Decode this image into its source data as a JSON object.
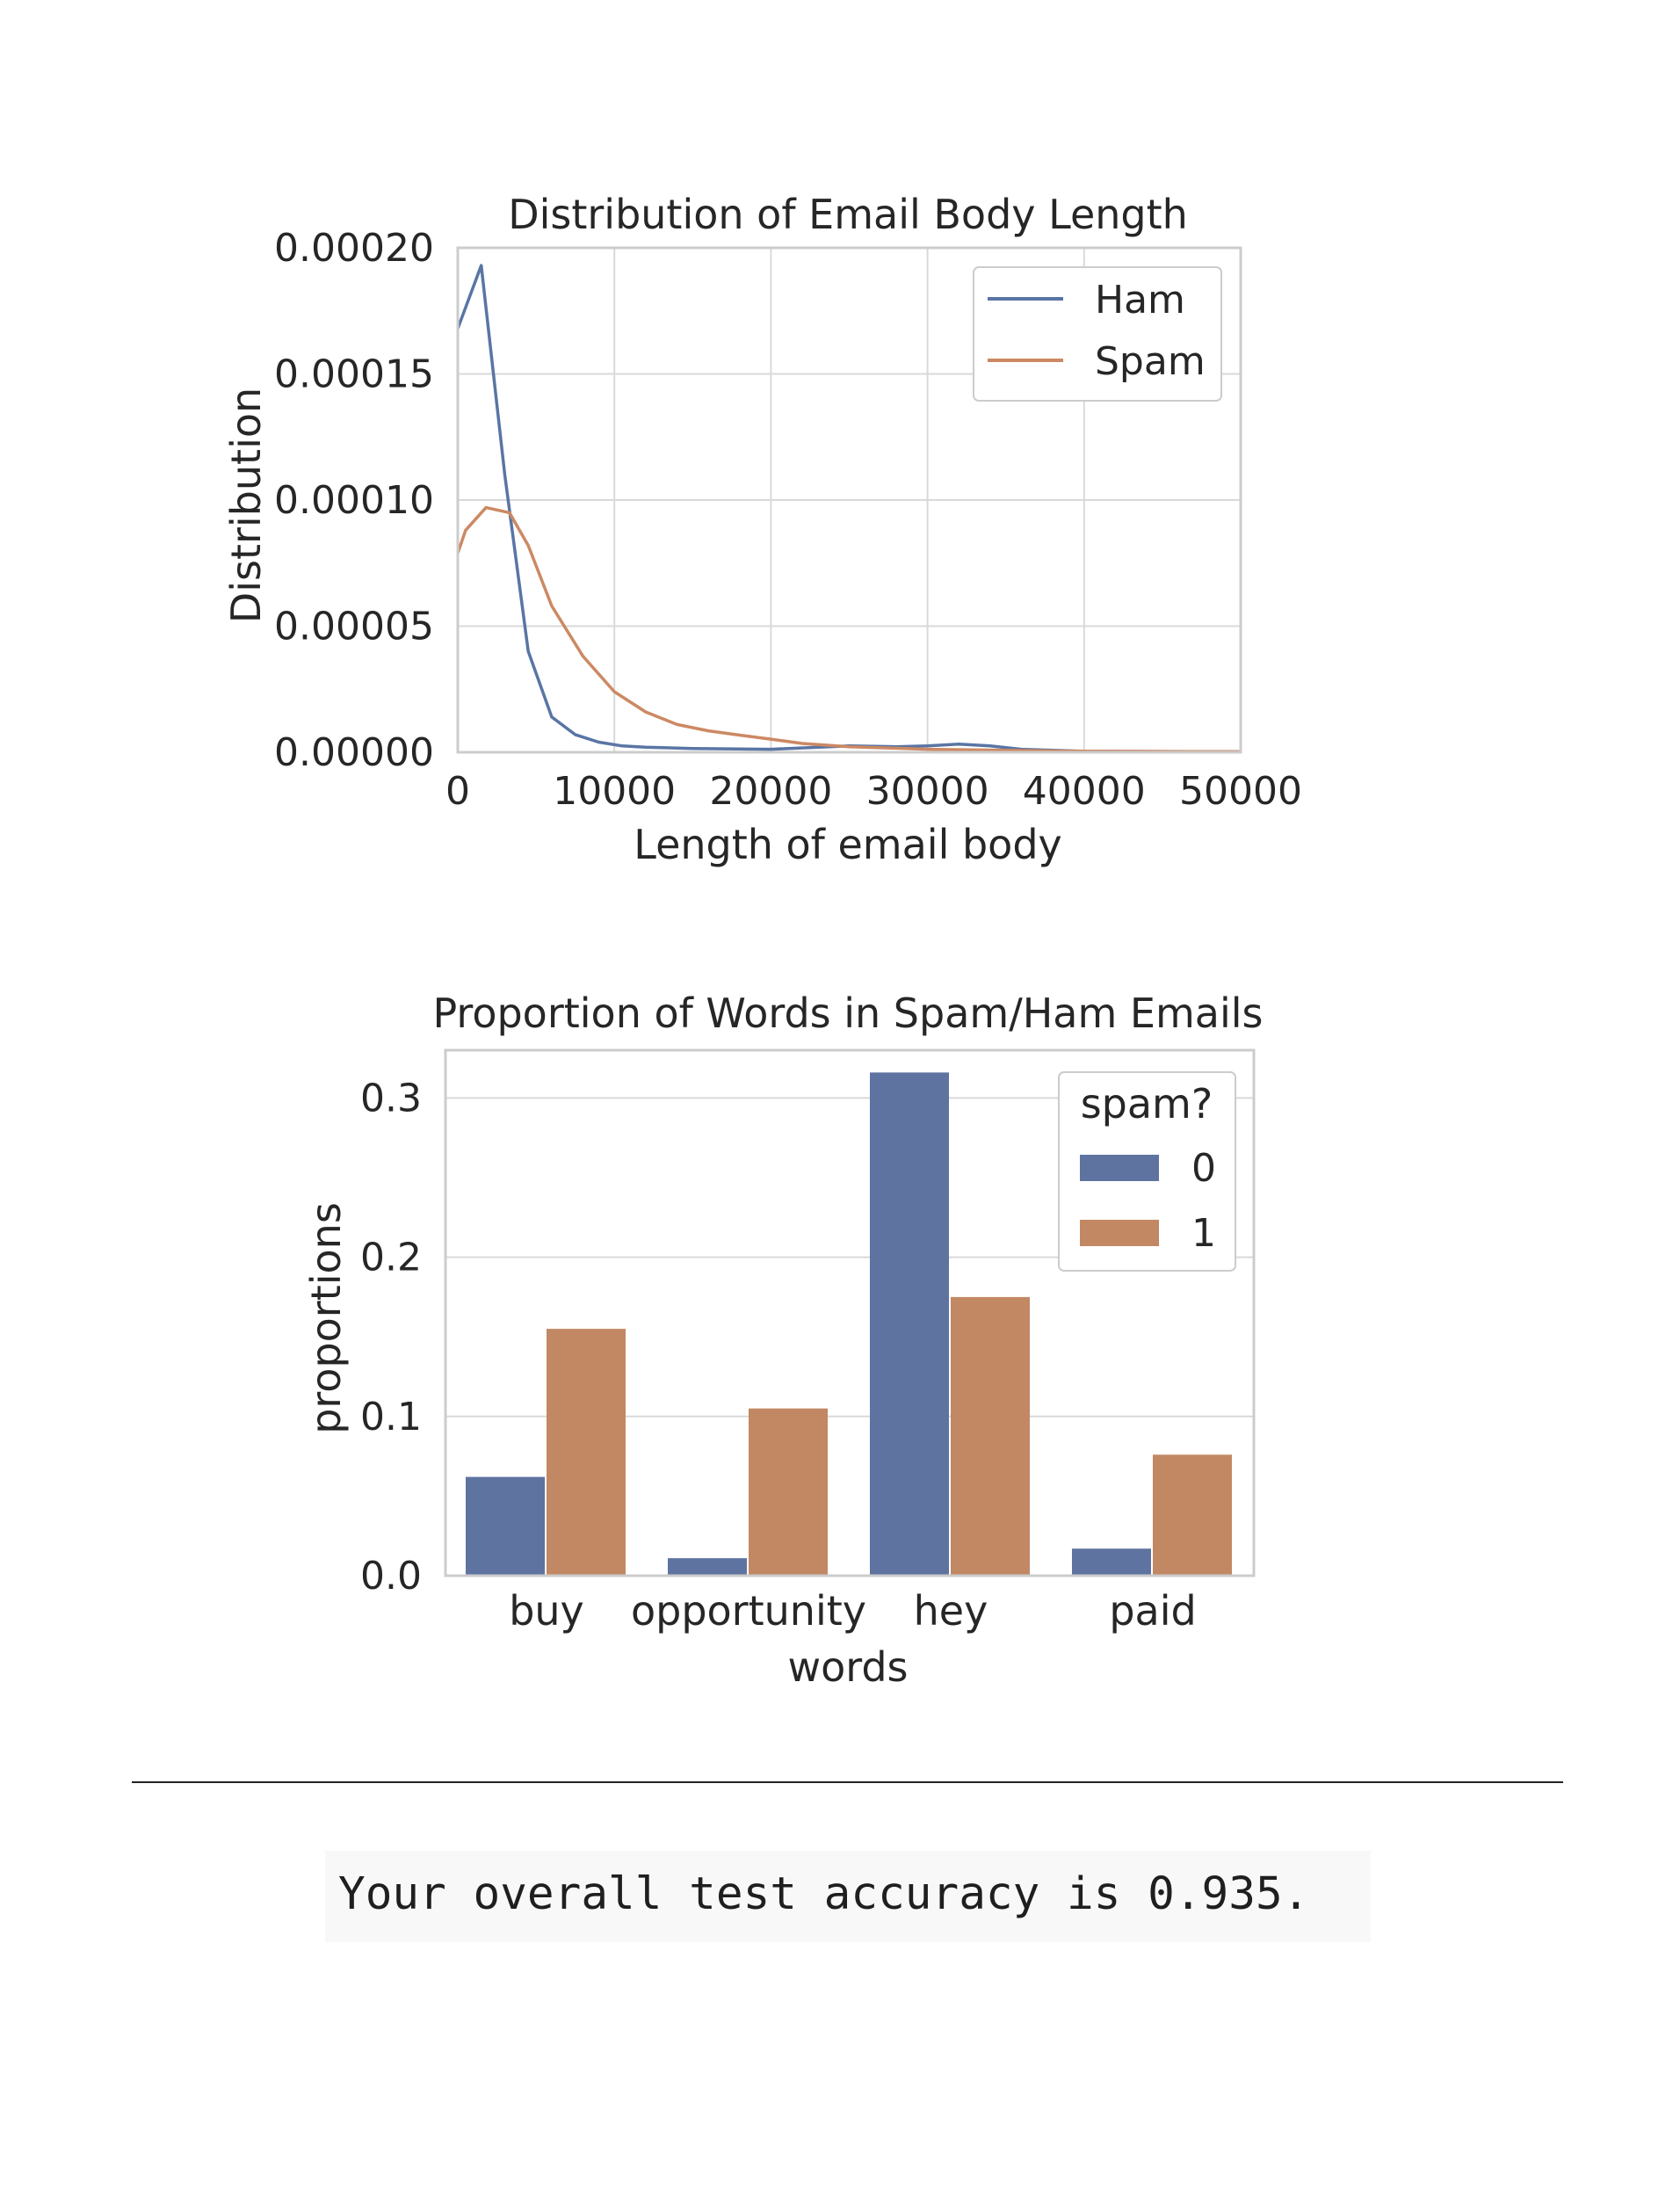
{
  "colors": {
    "ham": "#5975a4",
    "spam": "#cc8963",
    "bar_0": "#5f73a0",
    "bar_1": "#c28863",
    "grid": "#d9d9d9",
    "axes_edge": "#cccccc"
  },
  "chart_data": [
    {
      "type": "line",
      "title": "Distribution of Email Body Length",
      "xlabel": "Length of email body",
      "ylabel": "Distribution",
      "xlim": [
        0,
        50000
      ],
      "ylim": [
        0,
        0.0002
      ],
      "xticks": [
        "0",
        "10000",
        "20000",
        "30000",
        "40000",
        "50000"
      ],
      "yticks": [
        "0.00000",
        "0.00005",
        "0.00010",
        "0.00015",
        "0.00020"
      ],
      "grid": true,
      "legend": "top-right",
      "series": [
        {
          "name": "Ham",
          "x": [
            0,
            1500,
            3000,
            4500,
            6000,
            7500,
            9000,
            10500,
            12000,
            15000,
            20000,
            25000,
            28000,
            30000,
            32000,
            34000,
            36000,
            40000,
            50000
          ],
          "y": [
            0.000168,
            0.000193,
            0.00011,
            4e-05,
            1.4e-05,
            7e-06,
            4e-06,
            2.5e-06,
            2e-06,
            1.5e-06,
            1.2e-06,
            2.5e-06,
            2.2e-06,
            2.5e-06,
            3.2e-06,
            2.5e-06,
            1.2e-06,
            4e-07,
            2e-07
          ]
        },
        {
          "name": "Spam",
          "x": [
            0,
            500,
            1800,
            3300,
            4500,
            6000,
            8000,
            10000,
            12000,
            14000,
            16000,
            18000,
            20000,
            22000,
            25000,
            30000,
            35000,
            40000,
            50000
          ],
          "y": [
            7.9e-05,
            8.8e-05,
            9.7e-05,
            9.5e-05,
            8.2e-05,
            5.8e-05,
            3.8e-05,
            2.4e-05,
            1.6e-05,
            1.1e-05,
            8.5e-06,
            6.8e-06,
            5.2e-06,
            3.5e-06,
            2.2e-06,
            1.2e-06,
            8e-07,
            4e-07,
            2e-07
          ]
        }
      ]
    },
    {
      "type": "bar",
      "title": "Proportion of Words in Spam/Ham Emails",
      "xlabel": "words",
      "ylabel": "proportions",
      "categories": [
        "buy",
        "opportunity",
        "hey",
        "paid"
      ],
      "ylim": [
        0,
        0.33
      ],
      "yticks": [
        "0.0",
        "0.1",
        "0.2",
        "0.3"
      ],
      "grid": true,
      "legend": "top-right",
      "legend_title": "spam?",
      "series": [
        {
          "name": "0",
          "values": [
            0.062,
            0.011,
            0.316,
            0.017
          ]
        },
        {
          "name": "1",
          "values": [
            0.155,
            0.105,
            0.175,
            0.076
          ]
        }
      ]
    }
  ],
  "result": {
    "text": "Your overall test accuracy is 0.935."
  }
}
